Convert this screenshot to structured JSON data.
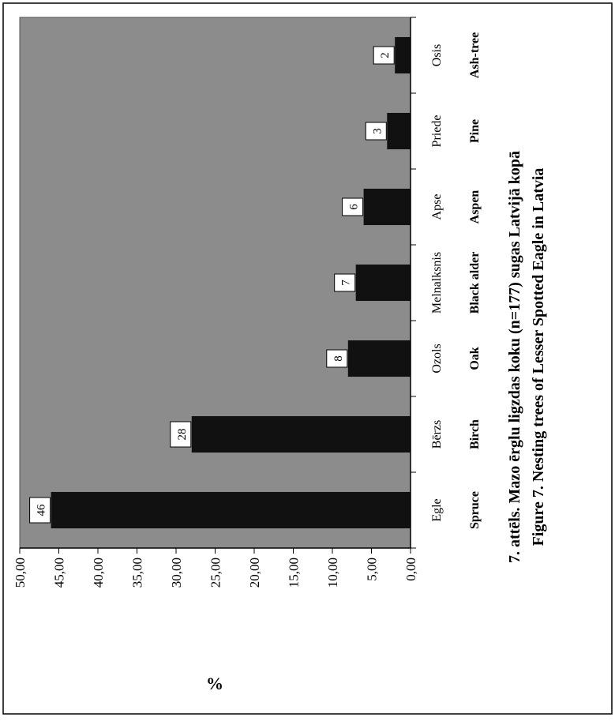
{
  "chart_data": {
    "type": "bar",
    "orientation": "rotated-90-clockwise",
    "categories_lv": [
      "Egle",
      "Bērzs",
      "Ozols",
      "Melnalksnis",
      "Apse",
      "Priede",
      "Osis"
    ],
    "categories_en": [
      "Spruce",
      "Birch",
      "Oak",
      "Black alder",
      "Aspen",
      "Pine",
      "Ash-tree"
    ],
    "values": [
      46,
      28,
      8,
      7,
      6,
      3,
      2
    ],
    "data_labels": [
      "46",
      "28",
      "8",
      "7",
      "6",
      "3",
      "2"
    ],
    "ylabel": "%",
    "ylim": [
      0,
      50
    ],
    "yticks": [
      "0,00",
      "5,00",
      "10,00",
      "15,00",
      "20,00",
      "25,00",
      "30,00",
      "35,00",
      "40,00",
      "45,00",
      "50,00"
    ],
    "grid": false,
    "plot_background": "#8c8c8c",
    "bar_color": "#111111",
    "caption_lv": "7. attēls. Mazo ērglu ligzdas koku (n=177) sugas Latvijā kopā",
    "caption_en": "Figure 7. Nesting trees of Lesser Spotted Eagle in Latvia"
  }
}
